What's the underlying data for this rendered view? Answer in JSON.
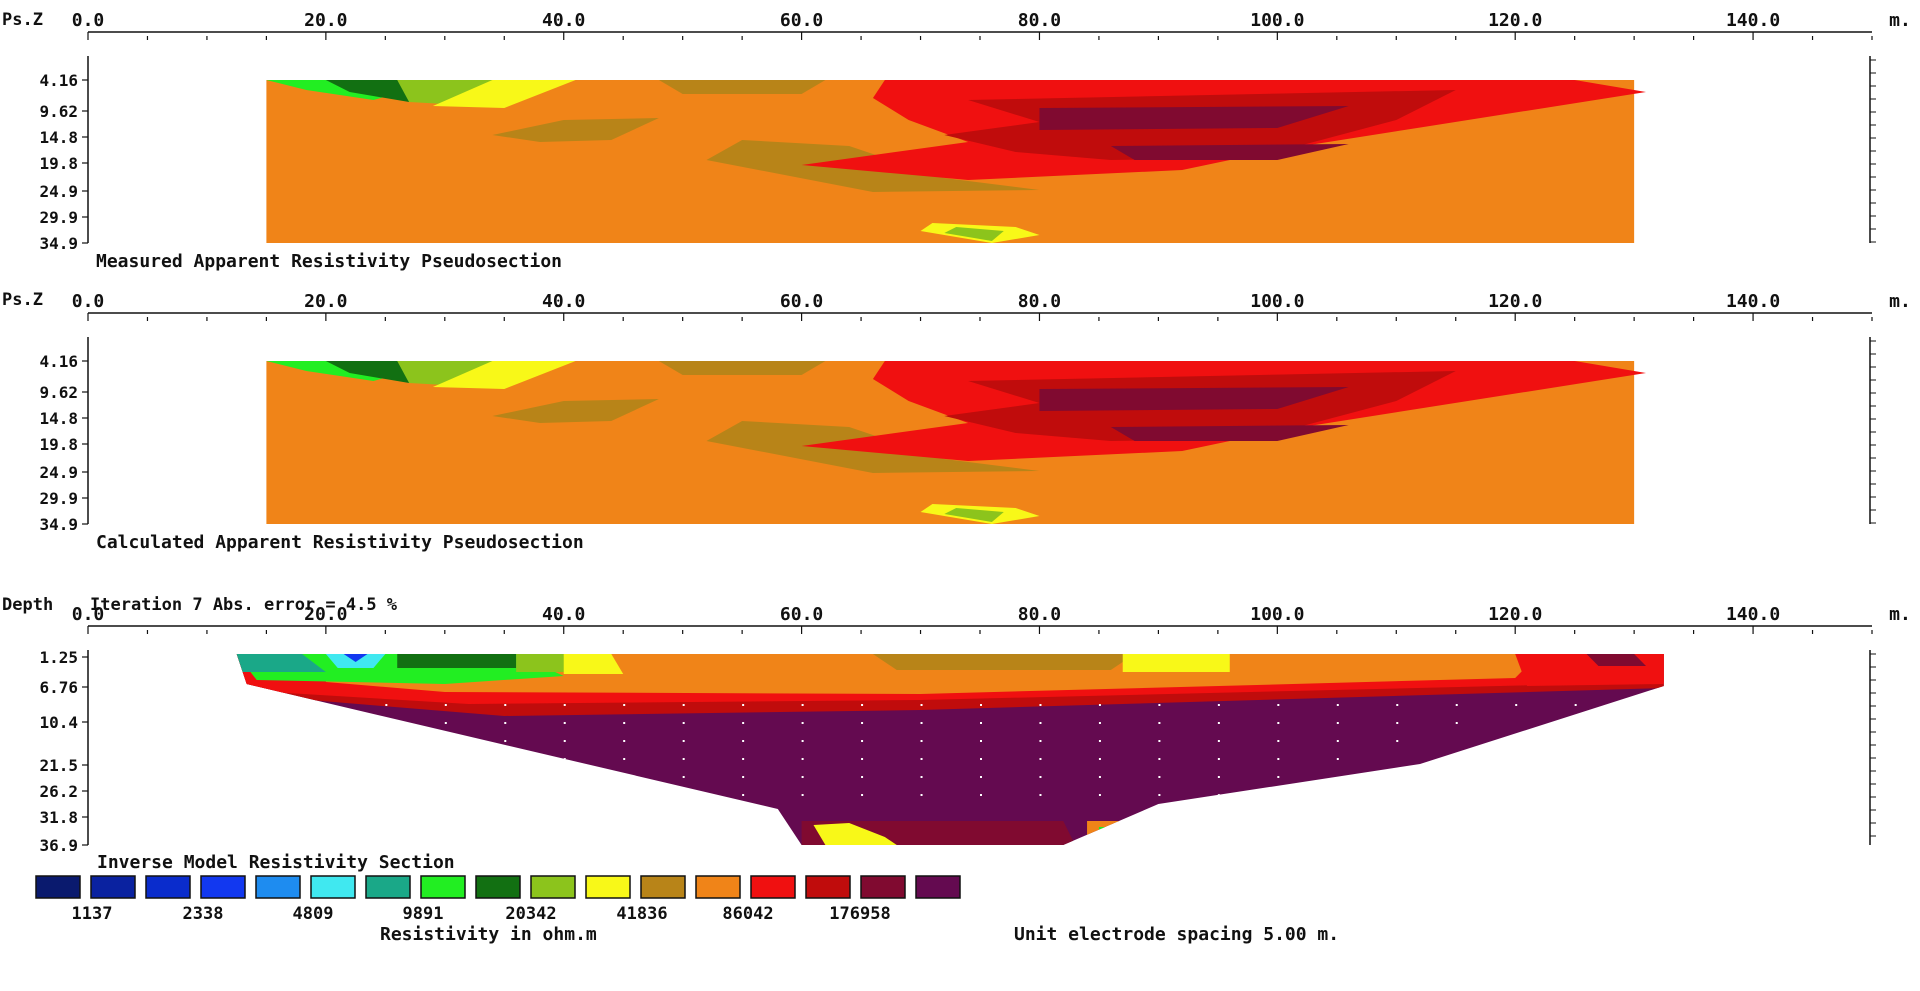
{
  "chart_data": [
    {
      "type": "heatmap",
      "title": "Measured Apparent Resistivity Pseudosection",
      "ylabel": "Ps.Z",
      "unit": "m.",
      "x_ticks": [
        "0.0",
        "20.0",
        "40.0",
        "60.0",
        "80.0",
        "100.0",
        "120.0",
        "140.0"
      ],
      "y_ticks": [
        "4.16",
        "9.62",
        "14.8",
        "19.8",
        "24.9",
        "29.9",
        "34.9"
      ],
      "xlim": [
        0,
        150
      ],
      "ylim": [
        0,
        34.9
      ],
      "x_extent": [
        15,
        130
      ],
      "apex_x": 76
    },
    {
      "type": "heatmap",
      "title": "Calculated Apparent Resistivity Pseudosection",
      "ylabel": "Ps.Z",
      "unit": "m.",
      "x_ticks": [
        "0.0",
        "20.0",
        "40.0",
        "60.0",
        "80.0",
        "100.0",
        "120.0",
        "140.0"
      ],
      "y_ticks": [
        "4.16",
        "9.62",
        "14.8",
        "19.8",
        "24.9",
        "29.9",
        "34.9"
      ],
      "xlim": [
        0,
        150
      ],
      "ylim": [
        0,
        34.9
      ],
      "x_extent": [
        15,
        130
      ],
      "apex_x": 76
    },
    {
      "type": "heatmap",
      "title": "Inverse Model Resistivity Section",
      "ylabel": "Depth",
      "header": "Iteration 7 Abs. error = 4.5 %",
      "unit": "m.",
      "x_ticks": [
        "0.0",
        "20.0",
        "40.0",
        "60.0",
        "80.0",
        "100.0",
        "120.0",
        "140.0"
      ],
      "y_ticks": [
        "1.25",
        "6.76",
        "10.4",
        "21.5",
        "26.2",
        "31.8",
        "36.9"
      ],
      "xlim": [
        0,
        150
      ],
      "ylim": [
        0,
        36.9
      ],
      "x_extent": [
        12.5,
        132.5
      ]
    }
  ],
  "legend": {
    "colors": [
      "#0a1a6e",
      "#0a22a0",
      "#0a2ccc",
      "#1238f0",
      "#1e8cf0",
      "#40e8f0",
      "#1aa888",
      "#22ee22",
      "#127012",
      "#8cc41c",
      "#f8f818",
      "#b88418",
      "#f08418",
      "#f01010",
      "#c00c0c",
      "#800a30",
      "#640a50"
    ],
    "labels": [
      "1137",
      "2338",
      "4809",
      "9891",
      "20342",
      "41836",
      "86042",
      "176958"
    ],
    "title": "Resistivity in ohm.m"
  },
  "footer_note": "Unit electrode spacing 5.00 m."
}
